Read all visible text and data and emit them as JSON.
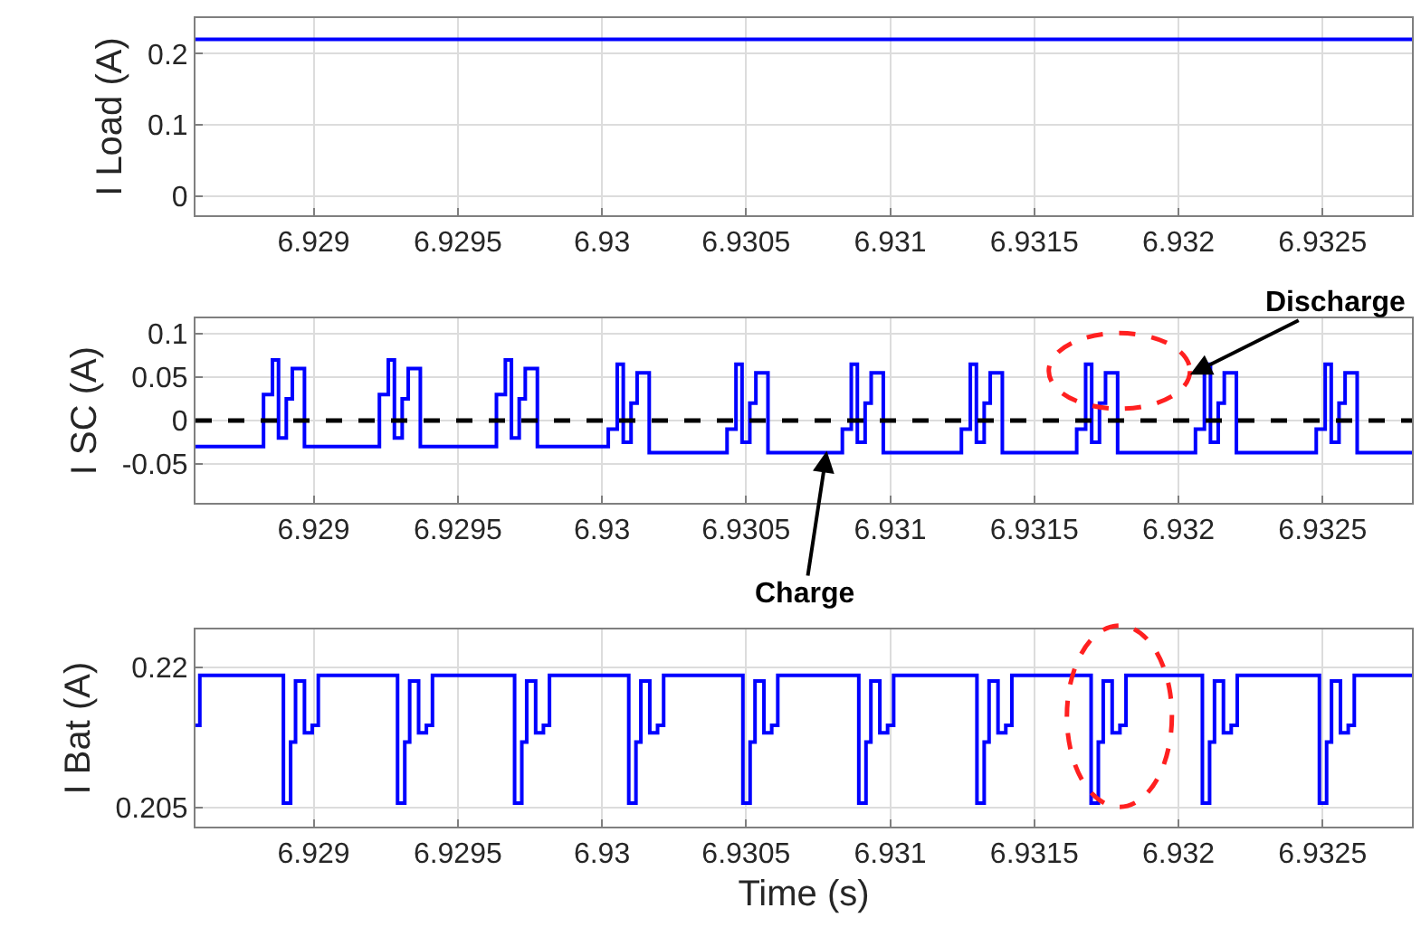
{
  "chart_data": [
    {
      "type": "line",
      "ylabel": "I Load (A)",
      "xlim": [
        6.92859,
        6.93281
      ],
      "xticks": [
        6.929,
        6.9295,
        6.93,
        6.9305,
        6.931,
        6.9315,
        6.932,
        6.9325
      ],
      "ylim": [
        -0.027,
        0.25
      ],
      "yticks": [
        0,
        0.1,
        0.2
      ],
      "grid": true,
      "x": [
        6.92859,
        6.93281
      ],
      "series": [
        {
          "color": "#0000ff",
          "values": [
            0.22,
            0.22
          ]
        }
      ]
    },
    {
      "type": "step",
      "ylabel": "I SC (A)",
      "xlim": [
        6.92859,
        6.93281
      ],
      "xticks": [
        6.929,
        6.9295,
        6.93,
        6.9305,
        6.931,
        6.9315,
        6.932,
        6.9325
      ],
      "ylim": [
        -0.095,
        0.118
      ],
      "yticks": [
        -0.05,
        0,
        0.05,
        0.1
      ],
      "grid": true,
      "ref_lines": [
        {
          "axis": "y",
          "value": 0,
          "color": "#000000",
          "line_style": "dashed"
        }
      ],
      "annotations": [
        {
          "text": "Discharge",
          "x": 6.93204,
          "y": 0.053
        },
        {
          "text": "Charge",
          "x": 6.93078,
          "y": -0.035
        }
      ],
      "x": [
        6.92859,
        6.928826,
        6.928857,
        6.928878,
        6.928905,
        6.928926,
        6.928968,
        6.929228,
        6.929259,
        6.92928,
        6.929307,
        6.929328,
        6.92937,
        6.929634,
        6.929665,
        6.929686,
        6.929713,
        6.929734,
        6.929776,
        6.930022,
        6.930053,
        6.930074,
        6.930101,
        6.930122,
        6.930164,
        6.930434,
        6.930465,
        6.930486,
        6.930513,
        6.930534,
        6.930576,
        6.930834,
        6.930865,
        6.930886,
        6.930913,
        6.930934,
        6.930976,
        6.931247,
        6.931278,
        6.931299,
        6.931326,
        6.931347,
        6.931389,
        6.931647,
        6.931678,
        6.931699,
        6.931726,
        6.931747,
        6.931789,
        6.932059,
        6.93209,
        6.932111,
        6.932138,
        6.932159,
        6.932201,
        6.932478,
        6.932509,
        6.93253,
        6.932557,
        6.932578,
        6.93262,
        6.93281
      ],
      "series": [
        {
          "color": "#0000ff",
          "values": [
            -0.03,
            0.03,
            0.07,
            -0.02,
            0.025,
            0.06,
            -0.03,
            0.03,
            0.07,
            -0.02,
            0.025,
            0.06,
            -0.03,
            0.03,
            0.07,
            -0.02,
            0.025,
            0.06,
            -0.03,
            -0.01,
            0.065,
            -0.025,
            0.02,
            0.055,
            -0.037,
            -0.01,
            0.065,
            -0.025,
            0.02,
            0.055,
            -0.037,
            -0.01,
            0.065,
            -0.025,
            0.02,
            0.055,
            -0.037,
            -0.01,
            0.065,
            -0.025,
            0.02,
            0.055,
            -0.037,
            -0.01,
            0.065,
            -0.025,
            0.02,
            0.055,
            -0.037,
            -0.01,
            0.065,
            -0.025,
            0.02,
            0.055,
            -0.037,
            -0.01,
            0.065,
            -0.025,
            0.02,
            0.055,
            -0.037,
            -0.037
          ]
        }
      ]
    },
    {
      "type": "step",
      "ylabel": "I Bat (A)",
      "xlabel": "Time (s)",
      "xlim": [
        6.92859,
        6.93281
      ],
      "xticks": [
        6.929,
        6.9295,
        6.93,
        6.9305,
        6.931,
        6.9315,
        6.932,
        6.9325
      ],
      "ylim": [
        0.203,
        0.224
      ],
      "yticks": [
        0.205,
        0.22
      ],
      "grid": true,
      "x": [
        6.92859,
        6.928605,
        6.928895,
        6.92892,
        6.928937,
        6.928968,
        6.928995,
        6.929016,
        6.929291,
        6.929316,
        6.929333,
        6.929364,
        6.929391,
        6.929412,
        6.929697,
        6.929722,
        6.929739,
        6.92977,
        6.929797,
        6.929818,
        6.930093,
        6.930118,
        6.930135,
        6.930166,
        6.930193,
        6.930214,
        6.930489,
        6.930514,
        6.930531,
        6.930562,
        6.930589,
        6.93061,
        6.930891,
        6.930916,
        6.930933,
        6.930964,
        6.930991,
        6.931012,
        6.931301,
        6.931326,
        6.931343,
        6.931374,
        6.931401,
        6.931422,
        6.931697,
        6.931722,
        6.931739,
        6.93177,
        6.931797,
        6.931818,
        6.932083,
        6.932108,
        6.932125,
        6.932156,
        6.932183,
        6.932204,
        6.932489,
        6.932514,
        6.932531,
        6.932562,
        6.932589,
        6.93261,
        6.93281
      ],
      "series": [
        {
          "color": "#0000ff",
          "values": [
            0.2138,
            0.2191,
            0.2055,
            0.212,
            0.2185,
            0.213,
            0.2138,
            0.2191,
            0.2055,
            0.212,
            0.2185,
            0.213,
            0.2138,
            0.2191,
            0.2055,
            0.212,
            0.2185,
            0.213,
            0.2138,
            0.2191,
            0.2055,
            0.212,
            0.2185,
            0.213,
            0.2138,
            0.2191,
            0.2055,
            0.212,
            0.2185,
            0.213,
            0.2138,
            0.2191,
            0.2055,
            0.212,
            0.2185,
            0.213,
            0.2138,
            0.2191,
            0.2055,
            0.212,
            0.2185,
            0.213,
            0.2138,
            0.2191,
            0.2055,
            0.212,
            0.2185,
            0.213,
            0.2138,
            0.2191,
            0.2055,
            0.212,
            0.2185,
            0.213,
            0.2138,
            0.2191,
            0.2055,
            0.212,
            0.2185,
            0.213,
            0.2138,
            0.2191,
            0.2191
          ]
        }
      ]
    }
  ]
}
